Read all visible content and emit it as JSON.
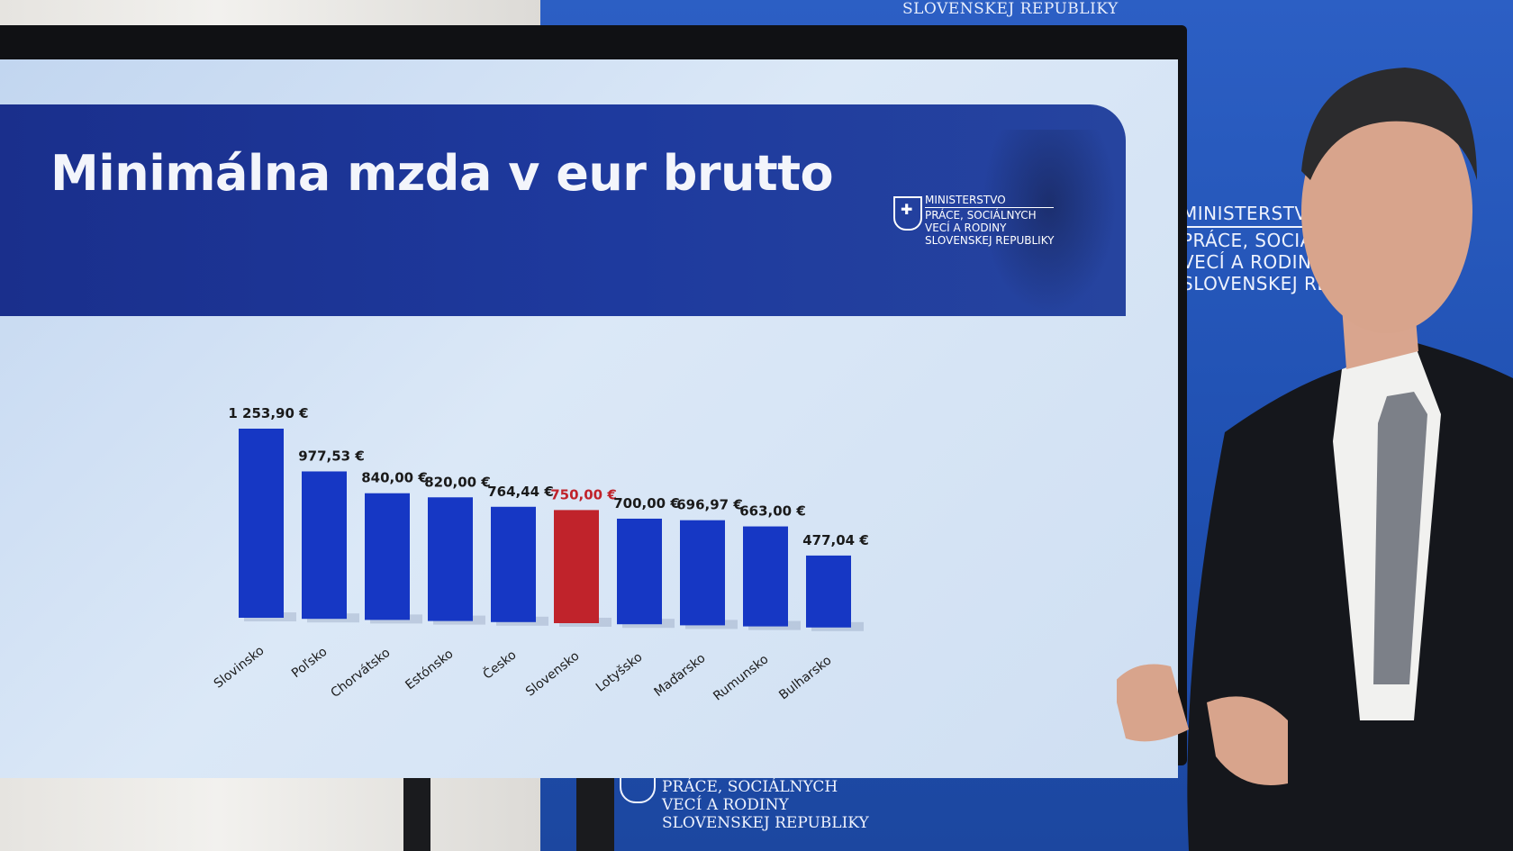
{
  "slide": {
    "title": "Minimálna mzda v eur brutto",
    "logo_lines": [
      "MINISTERSTVO",
      "PRÁCE, SOCIÁLNYCH",
      "VECÍ A RODINY",
      "SLOVENSKEJ REPUBLIKY"
    ]
  },
  "backdrop": {
    "top_text": "SLOVENSKEJ REPUBLIKY",
    "right_lines": [
      "MINISTERSTVO",
      "PRÁCE, SOCIÁL",
      "VECÍ A RODINY",
      "SLOVENSKEJ REP"
    ],
    "bottom_lines": [
      "PRÁCE, SOCIÁLNYCH",
      "VECÍ A RODINY",
      "SLOVENSKEJ REPUBLIKY"
    ]
  },
  "chart_data": {
    "type": "bar",
    "title": "Minimálna mzda v eur brutto",
    "categories": [
      "Slovinsko",
      "Poľsko",
      "Chorvátsko",
      "Estónsko",
      "Česko",
      "Slovensko",
      "Lotyšsko",
      "Maďarsko",
      "Rumunsko",
      "Bulharsko"
    ],
    "values": [
      1253.9,
      977.53,
      840.0,
      820.0,
      764.44,
      750.0,
      700.0,
      696.97,
      663.0,
      477.04
    ],
    "labels": [
      "1 253,90 €",
      "977,53 €",
      "840,00 €",
      "820,00 €",
      "764,44 €",
      "750,00 €",
      "700,00 €",
      "696,97 €",
      "663,00 €",
      "477,04 €"
    ],
    "highlight_index": 5,
    "colors": {
      "bar": "#1637c4",
      "highlight": "#c0232b",
      "label": "#1a1a1a",
      "highlight_label": "#c0232b"
    },
    "ylim": [
      0,
      1300
    ],
    "grid": false,
    "legend": "none"
  }
}
